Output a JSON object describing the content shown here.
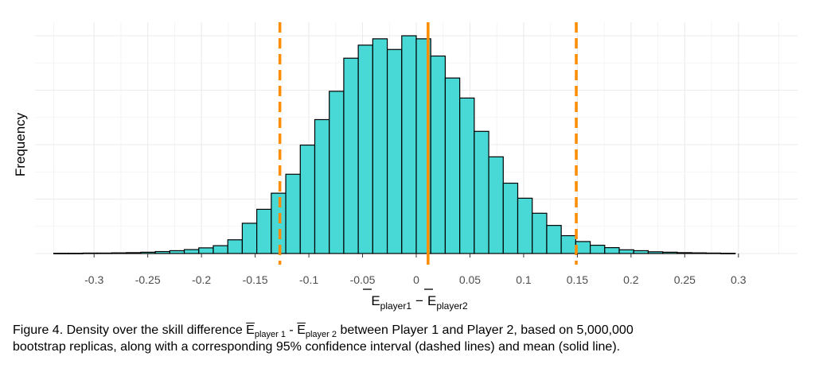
{
  "chart_data": {
    "type": "histogram",
    "ylabel": "Frequency",
    "xlabel_symbol": "E",
    "xlabel_sub1": "player1",
    "xlabel_minus": "−",
    "xlabel_sub2": "player2",
    "xlim": [
      -0.355,
      0.355
    ],
    "ylim": [
      0,
      1.0
    ],
    "x_ticks": [
      -0.3,
      -0.25,
      -0.2,
      -0.15,
      -0.1,
      -0.05,
      0,
      0.05,
      0.1,
      0.15,
      0.2,
      0.25,
      0.3
    ],
    "x_tick_labels": [
      "-0.3",
      "-0.25",
      "-0.2",
      "-0.15",
      "-0.1",
      "-0.05",
      "0",
      "0.05",
      "0.1",
      "0.15",
      "0.2",
      "0.25",
      "0.3"
    ],
    "y_axis_tick_labels_shown": false,
    "grid": true,
    "bar_color": "#48D8D5",
    "bar_edge_color": "#000000",
    "ci_line_color": "#FF8C00",
    "bins": {
      "start": -0.3375,
      "width": 0.0135,
      "counts": [
        0.001,
        0.001,
        0.002,
        0.002,
        0.003,
        0.004,
        0.006,
        0.009,
        0.013,
        0.018,
        0.026,
        0.036,
        0.063,
        0.139,
        0.203,
        0.277,
        0.364,
        0.498,
        0.615,
        0.745,
        0.897,
        0.957,
        0.986,
        0.937,
        1.0,
        0.986,
        0.907,
        0.806,
        0.714,
        0.561,
        0.444,
        0.323,
        0.254,
        0.185,
        0.129,
        0.082,
        0.055,
        0.038,
        0.027,
        0.017,
        0.013,
        0.008,
        0.006,
        0.004,
        0.003,
        0.002,
        0.001
      ]
    },
    "ci_lower": -0.127,
    "ci_upper": 0.149,
    "mean": 0.011
  },
  "caption": {
    "line1_pre": "Figure 4. Density over the skill difference ",
    "sym": "E",
    "sub1": "player 1",
    "dash": " - ",
    "sub2": "player 2",
    "line1_post": " between Player 1 and Player 2, based on 5,000,000",
    "line2": "bootstrap replicas, along with a corresponding  95% confidence interval (dashed lines) and mean (solid line)."
  }
}
